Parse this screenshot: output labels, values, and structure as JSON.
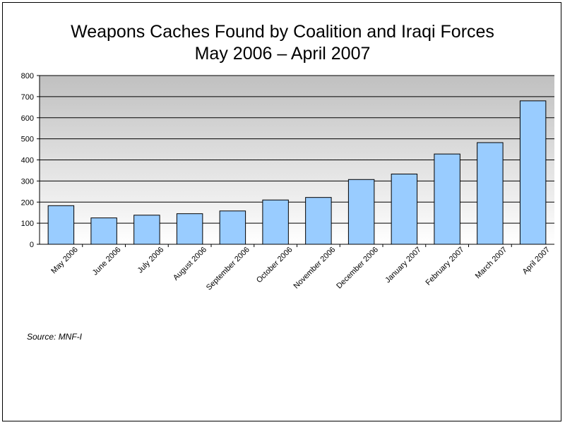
{
  "chart_data": {
    "type": "bar",
    "title": "Weapons Caches Found by Coalition and Iraqi Forces",
    "subtitle": "May 2006 – April 2007",
    "xlabel": "",
    "ylabel": "",
    "categories": [
      "May 2006",
      "June 2006",
      "July 2006",
      "August 2006",
      "September 2006",
      "October 2006",
      "November 2006",
      "December 2006",
      "January 2007",
      "February 2007",
      "March 2007",
      "April 2007"
    ],
    "values": [
      183,
      125,
      138,
      145,
      158,
      210,
      222,
      307,
      333,
      428,
      482,
      680
    ],
    "ylim": [
      0,
      800
    ],
    "yticks": [
      0,
      100,
      200,
      300,
      400,
      500,
      600,
      700,
      800
    ],
    "grid": true,
    "legend": "none",
    "colors": {
      "bar_fill": "#99ccff",
      "bar_stroke": "#000000",
      "plot_top": "#c0c0c0",
      "plot_bottom": "#ffffff",
      "gridline": "#000000"
    }
  },
  "source_note": "Source: MNF-I"
}
